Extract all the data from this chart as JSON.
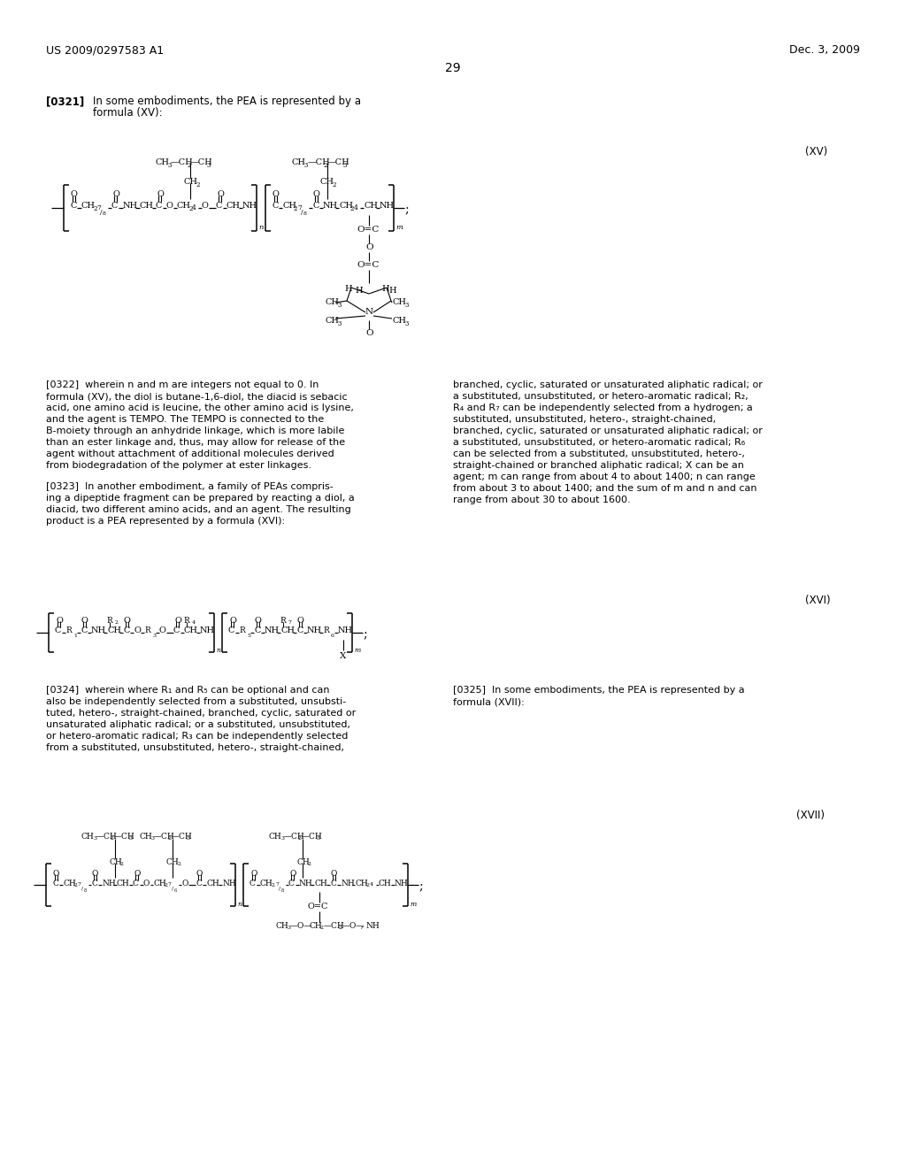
{
  "bg": "#ffffff",
  "header_left": "US 2009/0297583 A1",
  "header_right": "Dec. 3, 2009",
  "page_number": "29"
}
